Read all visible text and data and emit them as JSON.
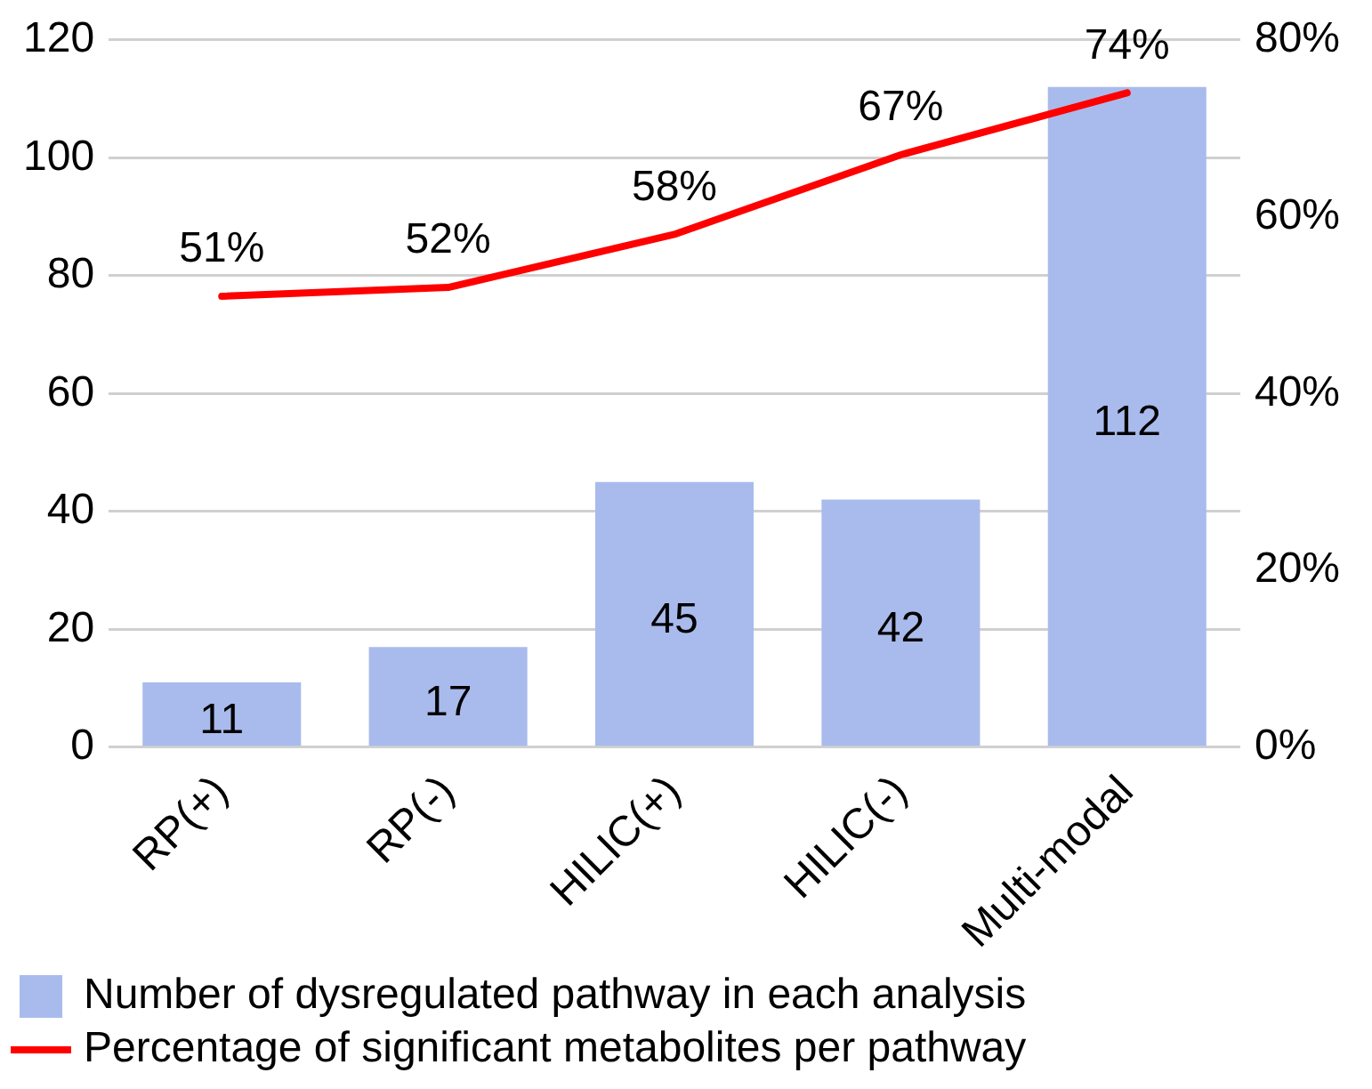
{
  "chart_data": {
    "type": "bar",
    "categories": [
      "RP(+)",
      "RP(-)",
      "HILIC(+)",
      "HILIC(-)",
      "Multi-modal"
    ],
    "series": [
      {
        "name": "Number of dysregulated pathway in each analysis",
        "color": "#a9bbec",
        "values": [
          11,
          17,
          45,
          42,
          112
        ],
        "value_labels": [
          "11",
          "17",
          "45",
          "42",
          "112"
        ]
      },
      {
        "name": "Percentage of significant metabolites per pathway",
        "type": "line",
        "axis": "y2",
        "color": "#ff0000",
        "values": [
          51,
          52,
          58,
          67,
          74
        ],
        "value_labels": [
          "51%",
          "52%",
          "58%",
          "67%",
          "74%"
        ]
      }
    ],
    "ylim": [
      0,
      120
    ],
    "yticks": [
      0,
      20,
      40,
      60,
      80,
      100,
      120
    ],
    "y2lim": [
      0,
      80
    ],
    "y2ticks": [
      {
        "value": 0,
        "label": "0%"
      },
      {
        "value": 20,
        "label": "20%"
      },
      {
        "value": 40,
        "label": "40%"
      },
      {
        "value": 60,
        "label": "60%"
      },
      {
        "value": 80,
        "label": "80%"
      }
    ],
    "grid": "y",
    "legend": "bottom",
    "marker": "none",
    "line_style": "solid"
  }
}
